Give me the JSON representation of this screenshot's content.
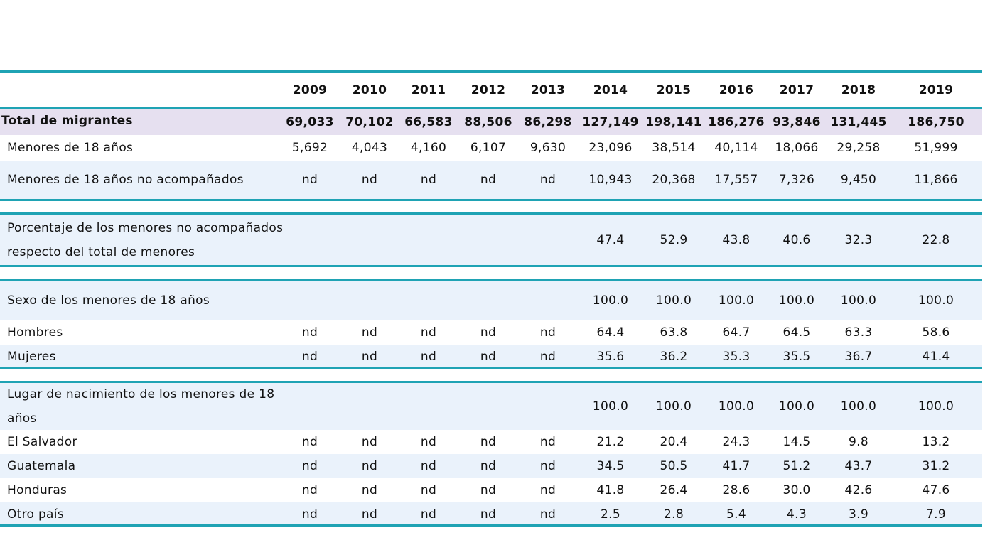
{
  "colors": {
    "rule": "#1fa3b4",
    "band_light": "#eaf2fb",
    "band_total": "#e6e0f0",
    "text": "#111111"
  },
  "table": {
    "years": [
      "2009",
      "2010",
      "2011",
      "2012",
      "2013",
      "2014",
      "2015",
      "2016",
      "2017",
      "2018",
      "2019"
    ],
    "sections": [
      {
        "rows": [
          {
            "label": "Total de migrantes",
            "bold": true,
            "bg": "total",
            "values": [
              "69,033",
              "70,102",
              "66,583",
              "88,506",
              "86,298",
              "127,149",
              "198,141",
              "186,276",
              "93,846",
              "131,445",
              "186,750"
            ]
          },
          {
            "label": "Menores de 18 años",
            "bg": "white",
            "values": [
              "5,692",
              "4,043",
              "4,160",
              "6,107",
              "9,630",
              "23,096",
              "38,514",
              "40,114",
              "18,066",
              "29,258",
              "51,999"
            ]
          },
          {
            "label": "Menores  de 18 años no acompañados",
            "bg": "light",
            "values": [
              "nd",
              "nd",
              "nd",
              "nd",
              "nd",
              "10,943",
              "20,368",
              "17,557",
              "7,326",
              "9,450",
              "11,866"
            ]
          }
        ]
      },
      {
        "rows": [
          {
            "label": [
              "Porcentaje de los menores no acompañados",
              "respecto del total de menores"
            ],
            "bg": "light",
            "values": [
              "",
              "",
              "",
              "",
              "",
              "47.4",
              "52.9",
              "43.8",
              "40.6",
              "32.3",
              "22.8"
            ]
          }
        ]
      },
      {
        "rows": [
          {
            "label": "Sexo de los menores de 18 años",
            "bg": "light",
            "values": [
              "",
              "",
              "",
              "",
              "",
              "100.0",
              "100.0",
              "100.0",
              "100.0",
              "100.0",
              "100.0"
            ]
          },
          {
            "label": "Hombres",
            "bg": "white",
            "values": [
              "nd",
              "nd",
              "nd",
              "nd",
              "nd",
              "64.4",
              "63.8",
              "64.7",
              "64.5",
              "63.3",
              "58.6"
            ]
          },
          {
            "label": "Mujeres",
            "bg": "light",
            "values": [
              "nd",
              "nd",
              "nd",
              "nd",
              "nd",
              "35.6",
              "36.2",
              "35.3",
              "35.5",
              "36.7",
              "41.4"
            ]
          }
        ]
      },
      {
        "rows": [
          {
            "label": [
              "Lugar de nacimiento de los menores de 18",
              "años"
            ],
            "bg": "light",
            "values": [
              "",
              "",
              "",
              "",
              "",
              "100.0",
              "100.0",
              "100.0",
              "100.0",
              "100.0",
              "100.0"
            ]
          },
          {
            "label": "El Salvador",
            "bg": "white",
            "values": [
              "nd",
              "nd",
              "nd",
              "nd",
              "nd",
              "21.2",
              "20.4",
              "24.3",
              "14.5",
              "9.8",
              "13.2"
            ]
          },
          {
            "label": "Guatemala",
            "bg": "light",
            "values": [
              "nd",
              "nd",
              "nd",
              "nd",
              "nd",
              "34.5",
              "50.5",
              "41.7",
              "51.2",
              "43.7",
              "31.2"
            ]
          },
          {
            "label": "Honduras",
            "bg": "white",
            "values": [
              "nd",
              "nd",
              "nd",
              "nd",
              "nd",
              "41.8",
              "26.4",
              "28.6",
              "30.0",
              "42.6",
              "47.6"
            ]
          },
          {
            "label": "Otro país",
            "bg": "light",
            "values": [
              "nd",
              "nd",
              "nd",
              "nd",
              "nd",
              "2.5",
              "2.8",
              "5.4",
              "4.3",
              "3.9",
              "7.9"
            ]
          }
        ]
      }
    ]
  }
}
